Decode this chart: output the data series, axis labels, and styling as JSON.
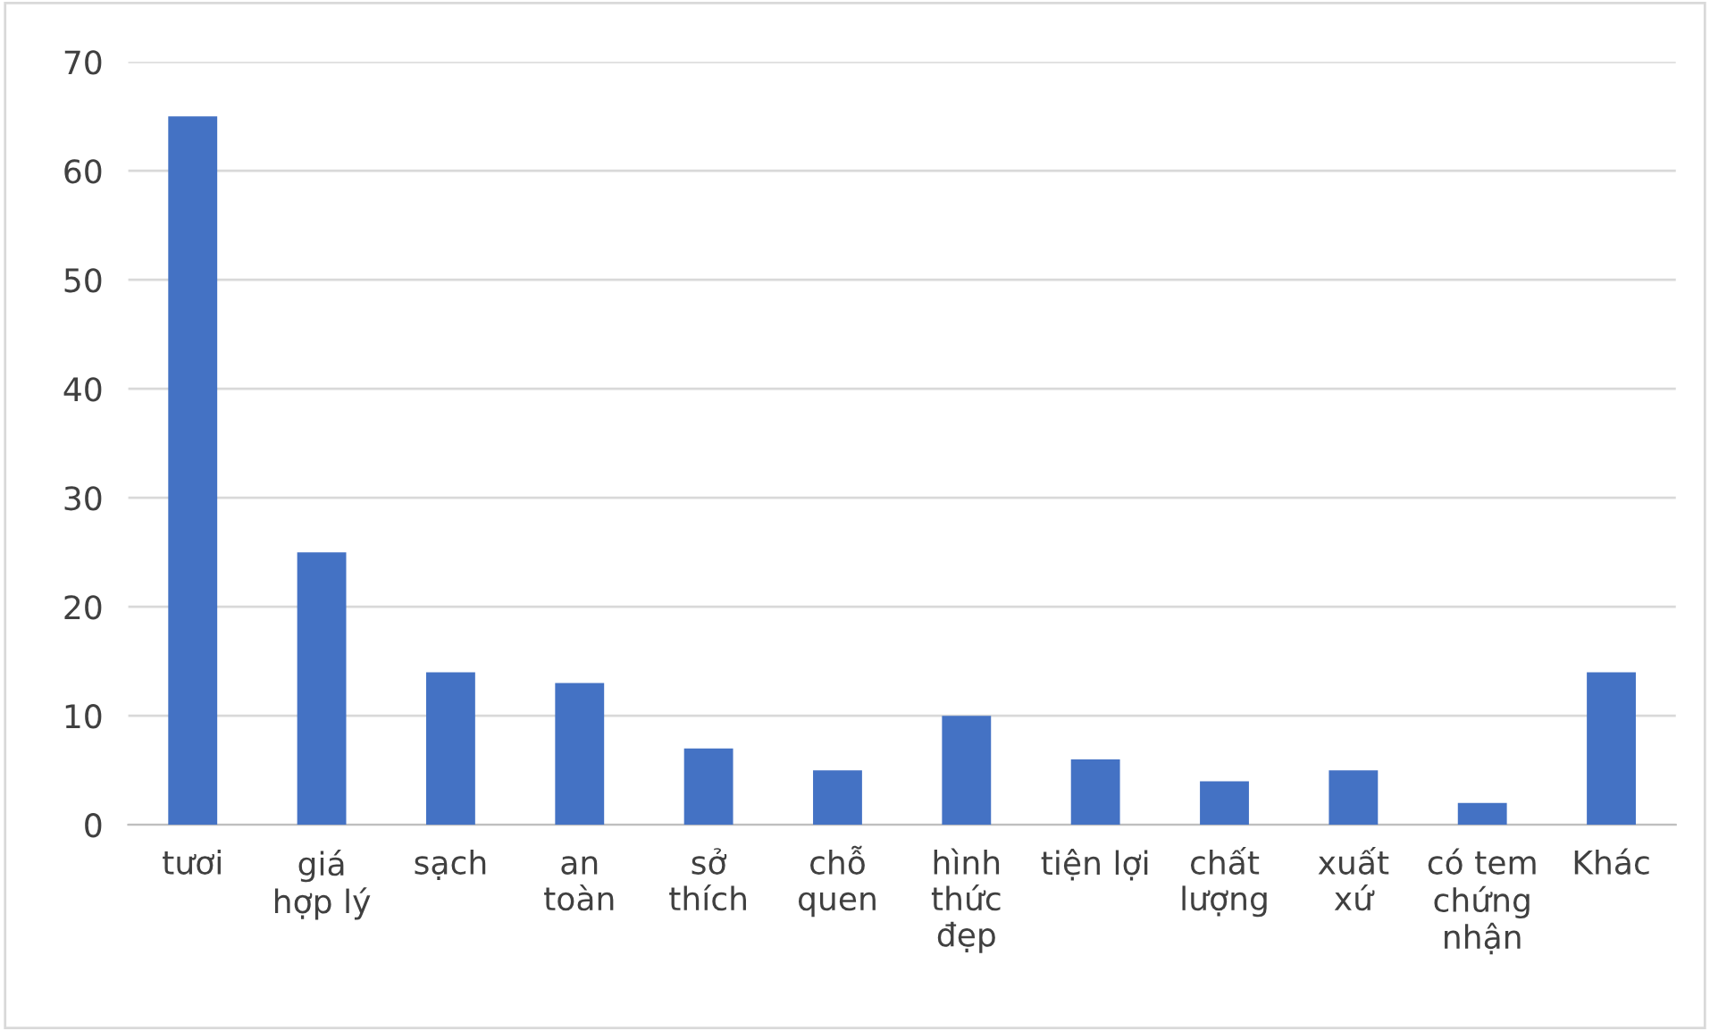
{
  "chart_data": {
    "type": "bar",
    "categories": [
      "tươi",
      "giá\nhợp lý",
      "sạch",
      "an\ntoàn",
      "sở\nthích",
      "chỗ\nquen",
      "hình\nthức\nđẹp",
      "tiện lợi",
      "chất\nlượng",
      "xuất\nxứ",
      "có tem\nchứng\nnhận",
      "Khác"
    ],
    "values": [
      65,
      25,
      14,
      13,
      7,
      5,
      10,
      6,
      4,
      5,
      2,
      14
    ],
    "color": "#4472c4",
    "ylim": [
      0,
      70
    ],
    "yticks": [
      0,
      10,
      20,
      30,
      40,
      50,
      60,
      70
    ],
    "grid": "y",
    "legend": false
  }
}
